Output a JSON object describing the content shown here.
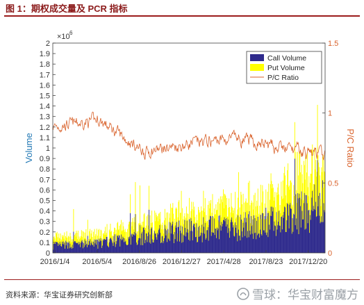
{
  "figure": {
    "title": "图 1：期权成交量及 PCR 指标",
    "source": "资料来源：华宝证券研究创新部",
    "watermark": "雪球：华宝财富魔方"
  },
  "chart_data": {
    "type": "bar",
    "ylabel": "Volume",
    "y2label": "P/C Ratio",
    "y_multiplier_label": "×10",
    "y_multiplier_exp": "6",
    "ylim": [
      0,
      2
    ],
    "y2lim": [
      0,
      1.5
    ],
    "yticks": [
      "0",
      "0.1",
      "0.2",
      "0.3",
      "0.4",
      "0.5",
      "0.6",
      "0.7",
      "0.8",
      "0.9",
      "1",
      "1.1",
      "1.2",
      "1.3",
      "1.4",
      "1.5",
      "1.6",
      "1.7",
      "1.8",
      "1.9",
      "2"
    ],
    "y2ticks": [
      "0",
      "0.5",
      "1",
      "1.5"
    ],
    "xticks": [
      "2016/1/4",
      "2016/5/4",
      "2016/8/26",
      "2016/12/27",
      "2017/4/28",
      "2017/8/23",
      "2017/12/20"
    ],
    "legend": [
      "Call Volume",
      "Put Volume",
      "P/C Ratio"
    ],
    "legend_position": "top-right",
    "colors": {
      "call": "#2e2a8c",
      "put": "#ffff00",
      "ratio": "#d9622b",
      "axis": "#404040",
      "left_label": "#1f77b4",
      "right_label": "#d9622b"
    },
    "series": [
      {
        "name": "Call Volume",
        "x": [
          "2016/1/4",
          "2016/5/4",
          "2016/8/26",
          "2016/12/27",
          "2017/4/28",
          "2017/8/23",
          "2017/12/20"
        ],
        "values": [
          0.07,
          0.09,
          0.16,
          0.22,
          0.24,
          0.3,
          0.48
        ]
      },
      {
        "name": "Put Volume",
        "x": [
          "2016/1/4",
          "2016/5/4",
          "2016/8/26",
          "2016/12/27",
          "2017/4/28",
          "2017/8/23",
          "2017/12/20"
        ],
        "values": [
          0.06,
          0.07,
          0.12,
          0.15,
          0.18,
          0.22,
          0.35
        ]
      },
      {
        "name": "P/C Ratio",
        "x": [
          "2016/1/4",
          "2016/5/4",
          "2016/8/26",
          "2016/12/27",
          "2017/4/28",
          "2017/8/23",
          "2017/12/20"
        ],
        "values": [
          0.9,
          0.95,
          0.72,
          0.78,
          0.82,
          0.75,
          0.7
        ]
      }
    ]
  }
}
